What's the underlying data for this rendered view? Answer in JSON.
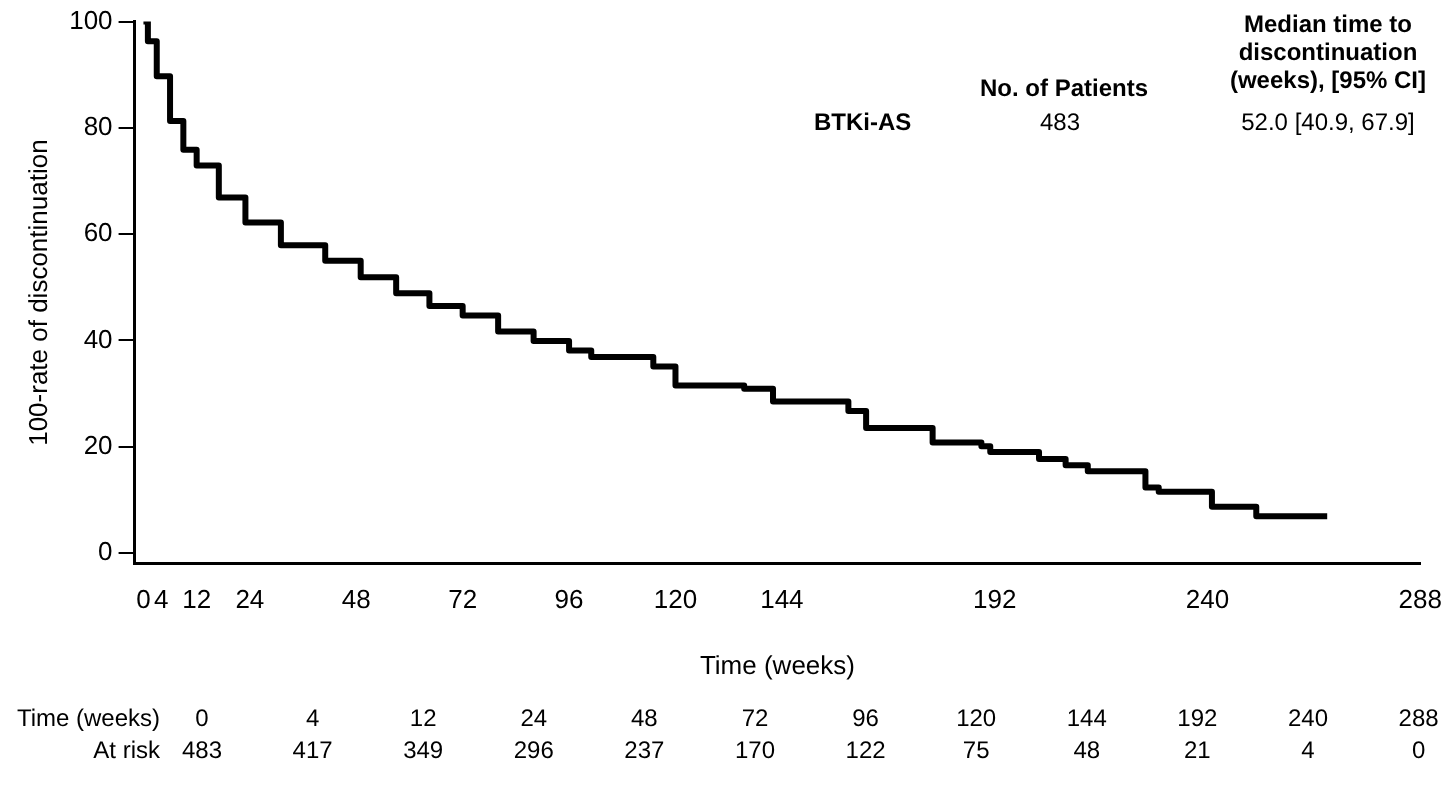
{
  "chart_data": {
    "type": "step",
    "xlabel": "Time (weeks)",
    "ylabel": "100-rate of discontinuation",
    "xlim": [
      -2,
      288
    ],
    "ylim": [
      -2,
      100
    ],
    "xticks": [
      0,
      4,
      12,
      24,
      48,
      72,
      96,
      120,
      144,
      192,
      240,
      288
    ],
    "yticks": [
      0,
      20,
      40,
      60,
      80,
      100
    ],
    "grid": false,
    "legend": false,
    "series": [
      {
        "name": "BTKi-AS",
        "color": "#000000",
        "x": [
          0,
          0.5,
          1,
          3,
          6,
          9,
          12,
          17,
          23,
          31,
          41,
          49,
          57,
          64.5,
          72,
          80,
          88,
          96,
          101,
          115,
          120,
          135.5,
          142,
          159,
          163,
          175,
          178,
          189,
          191,
          202,
          208,
          213,
          224,
          226,
          229,
          240,
          241,
          251,
          267
        ],
        "values": [
          100,
          100,
          96.3,
          89.7,
          81.3,
          75.9,
          72.9,
          66.9,
          62.2,
          57.9,
          55,
          51.9,
          48.9,
          46.5,
          44.7,
          41.7,
          39.9,
          38.1,
          36.9,
          35.1,
          31.5,
          30.9,
          28.5,
          26.7,
          23.5,
          23.5,
          20.8,
          20.1,
          19,
          17.7,
          16.5,
          15.4,
          15.4,
          12.3,
          11.5,
          11.5,
          8.7,
          6.9,
          6.9
        ]
      }
    ],
    "annotations": [
      "No. of Patients",
      "Median time to discontinuation (weeks), [95% CI]",
      "483",
      "52.0 [40.9, 67.9]",
      "Time (weeks)",
      "0",
      "4",
      "12",
      "24",
      "48",
      "72",
      "96",
      "120",
      "144",
      "192",
      "240",
      "288",
      "At risk",
      "483",
      "417",
      "349",
      "296",
      "237",
      "170",
      "122",
      "75",
      "48",
      "21",
      "4",
      "0"
    ]
  }
}
